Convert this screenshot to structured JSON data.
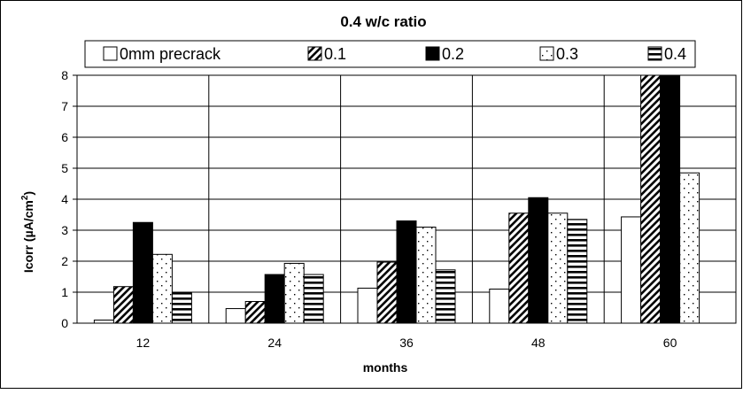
{
  "chart_data": {
    "type": "bar",
    "title": "0.4 w/c ratio",
    "xlabel": "months",
    "ylabel_main": "Icorr (",
    "ylabel_mu": "µ",
    "ylabel_unit": "A/cm",
    "ylabel_exp": "2",
    "ylabel_close": ")",
    "categories": [
      "12",
      "24",
      "36",
      "48",
      "60"
    ],
    "ylim": [
      0,
      8
    ],
    "yticks": [
      "0",
      "1",
      "2",
      "3",
      "4",
      "5",
      "6",
      "7",
      "8"
    ],
    "grid": true,
    "legend_position": "top",
    "series": [
      {
        "name": "0mm precrack",
        "pattern": "white",
        "values": [
          0.1,
          0.47,
          1.13,
          1.1,
          3.43
        ]
      },
      {
        "name": "0.1",
        "pattern": "diagonal",
        "values": [
          1.18,
          0.7,
          1.97,
          3.55,
          8.2
        ]
      },
      {
        "name": "0.2",
        "pattern": "solid-black",
        "values": [
          3.25,
          1.57,
          3.3,
          4.05,
          8.2
        ]
      },
      {
        "name": "0.3",
        "pattern": "dots",
        "values": [
          2.22,
          1.93,
          3.1,
          3.55,
          4.85
        ]
      },
      {
        "name": "0.4",
        "pattern": "horizontal",
        "values": [
          0.98,
          1.57,
          1.72,
          3.35,
          0
        ]
      }
    ]
  }
}
